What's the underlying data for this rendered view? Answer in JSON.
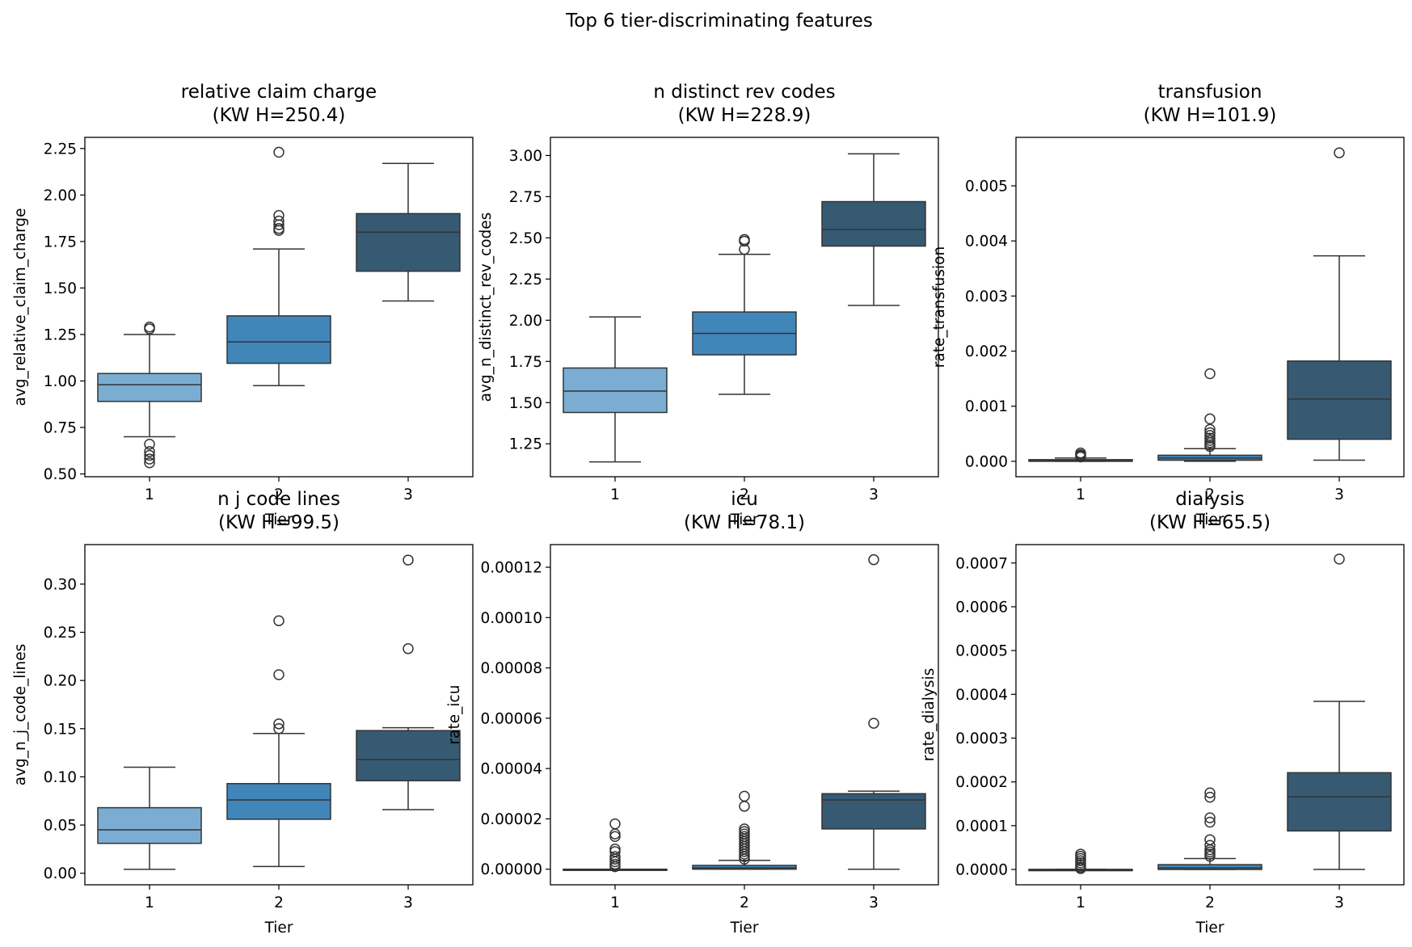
{
  "figure": {
    "title": "Top 6 tier-discriminating features"
  },
  "chart_data": [
    {
      "type": "box",
      "title": "relative claim charge",
      "subtitle": "(KW H=250.4)",
      "xlabel": "Tier",
      "ylabel": "avg_relative_claim_charge",
      "categories": [
        "1",
        "2",
        "3"
      ],
      "ylim": [
        0.485,
        2.31
      ],
      "yticks": [
        0.5,
        0.75,
        1.0,
        1.25,
        1.5,
        1.75,
        2.0,
        2.25
      ],
      "ytick_labels": [
        "0.50",
        "0.75",
        "1.00",
        "1.25",
        "1.50",
        "1.75",
        "2.00",
        "2.25"
      ],
      "boxes": [
        {
          "whislo": 0.7,
          "q1": 0.89,
          "med": 0.98,
          "q3": 1.04,
          "whishi": 1.25,
          "fliers": [
            1.29,
            1.28,
            0.66,
            0.62,
            0.6,
            0.58,
            0.56
          ]
        },
        {
          "whislo": 0.975,
          "q1": 1.095,
          "med": 1.21,
          "q3": 1.35,
          "whishi": 1.71,
          "fliers": [
            2.23,
            1.89,
            1.86,
            1.84,
            1.82,
            1.81
          ]
        },
        {
          "whislo": 1.43,
          "q1": 1.59,
          "med": 1.8,
          "q3": 1.9,
          "whishi": 2.17,
          "fliers": []
        }
      ]
    },
    {
      "type": "box",
      "title": "n distinct rev codes",
      "subtitle": "(KW H=228.9)",
      "xlabel": "Tier",
      "ylabel": "avg_n_distinct_rev_codes",
      "categories": [
        "1",
        "2",
        "3"
      ],
      "ylim": [
        1.05,
        3.11
      ],
      "yticks": [
        1.25,
        1.5,
        1.75,
        2.0,
        2.25,
        2.5,
        2.75,
        3.0
      ],
      "ytick_labels": [
        "1.25",
        "1.50",
        "1.75",
        "2.00",
        "2.25",
        "2.50",
        "2.75",
        "3.00"
      ],
      "boxes": [
        {
          "whislo": 1.14,
          "q1": 1.44,
          "med": 1.57,
          "q3": 1.71,
          "whishi": 2.02,
          "fliers": []
        },
        {
          "whislo": 1.55,
          "q1": 1.79,
          "med": 1.92,
          "q3": 2.05,
          "whishi": 2.4,
          "fliers": [
            2.49,
            2.48,
            2.43
          ]
        },
        {
          "whislo": 2.09,
          "q1": 2.45,
          "med": 2.55,
          "q3": 2.72,
          "whishi": 3.01,
          "fliers": []
        }
      ]
    },
    {
      "type": "box",
      "title": "transfusion",
      "subtitle": "(KW H=101.9)",
      "xlabel": "Tier",
      "ylabel": "rate_transfusion",
      "categories": [
        "1",
        "2",
        "3"
      ],
      "ylim": [
        -0.00028,
        0.00588
      ],
      "yticks": [
        0,
        0.001,
        0.002,
        0.003,
        0.004,
        0.005
      ],
      "ytick_labels": [
        "0.000",
        "0.001",
        "0.002",
        "0.003",
        "0.004",
        "0.005"
      ],
      "boxes": [
        {
          "whislo": 0.0,
          "q1": 0.0,
          "med": 1e-05,
          "q3": 3e-05,
          "whishi": 6e-05,
          "fliers": [
            0.00015,
            0.00012,
            0.0001,
            8e-05
          ]
        },
        {
          "whislo": 0.0,
          "q1": 2e-05,
          "med": 6e-05,
          "q3": 0.00011,
          "whishi": 0.00023,
          "fliers": [
            0.00159,
            0.00077,
            0.00058,
            0.00052,
            0.00047,
            0.00042,
            0.00038,
            0.00034,
            0.0003,
            0.00027
          ]
        },
        {
          "whislo": 2e-05,
          "q1": 0.0004,
          "med": 0.00113,
          "q3": 0.00182,
          "whishi": 0.00373,
          "fliers": [
            0.0056
          ]
        }
      ]
    },
    {
      "type": "box",
      "title": "n j code lines",
      "subtitle": "(KW H=99.5)",
      "xlabel": "Tier",
      "ylabel": "avg_n_j_code_lines",
      "categories": [
        "1",
        "2",
        "3"
      ],
      "ylim": [
        -0.012,
        0.341
      ],
      "yticks": [
        0,
        0.05,
        0.1,
        0.15,
        0.2,
        0.25,
        0.3
      ],
      "ytick_labels": [
        "0.00",
        "0.05",
        "0.10",
        "0.15",
        "0.20",
        "0.25",
        "0.30"
      ],
      "boxes": [
        {
          "whislo": 0.004,
          "q1": 0.031,
          "med": 0.045,
          "q3": 0.068,
          "whishi": 0.11,
          "fliers": []
        },
        {
          "whislo": 0.007,
          "q1": 0.056,
          "med": 0.076,
          "q3": 0.093,
          "whishi": 0.145,
          "fliers": [
            0.262,
            0.206,
            0.155,
            0.15
          ]
        },
        {
          "whislo": 0.066,
          "q1": 0.096,
          "med": 0.118,
          "q3": 0.148,
          "whishi": 0.151,
          "fliers": [
            0.325,
            0.233
          ]
        }
      ]
    },
    {
      "type": "box",
      "title": "icu",
      "subtitle": "(KW H=78.1)",
      "xlabel": "Tier",
      "ylabel": "rate_icu",
      "categories": [
        "1",
        "2",
        "3"
      ],
      "ylim": [
        -6.2e-06,
        0.000129
      ],
      "yticks": [
        0,
        2e-05,
        4e-05,
        6e-05,
        8e-05,
        0.0001,
        0.00012
      ],
      "ytick_labels": [
        "0.00000",
        "0.00002",
        "0.00004",
        "0.00006",
        "0.00008",
        "0.00010",
        "0.00012"
      ],
      "boxes": [
        {
          "whislo": 0.0,
          "q1": 0.0,
          "med": 0.0,
          "q3": 0.0,
          "whishi": 0.0,
          "fliers": [
            1.8e-05,
            1.4e-05,
            1.3e-05,
            8e-06,
            7e-06,
            5e-06,
            4e-06,
            3e-06,
            2e-06,
            1e-06
          ]
        },
        {
          "whislo": 0.0,
          "q1": 0.0,
          "med": 5e-07,
          "q3": 1.5e-06,
          "whishi": 3.5e-06,
          "fliers": [
            2.9e-05,
            2.5e-05,
            1.6e-05,
            1.5e-05,
            1.4e-05,
            1.3e-05,
            1.2e-05,
            1.1e-05,
            1e-05,
            9e-06,
            8e-06,
            7e-06,
            6e-06,
            5e-06,
            4e-06
          ]
        },
        {
          "whislo": 0.0,
          "q1": 1.6e-05,
          "med": 2.75e-05,
          "q3": 3e-05,
          "whishi": 3.1e-05,
          "fliers": [
            0.000123,
            5.8e-05
          ]
        }
      ]
    },
    {
      "type": "box",
      "title": "dialysis",
      "subtitle": "(KW H=65.5)",
      "xlabel": "Tier",
      "ylabel": "rate_dialysis",
      "categories": [
        "1",
        "2",
        "3"
      ],
      "ylim": [
        -3.5e-05,
        0.000742
      ],
      "yticks": [
        0,
        0.0001,
        0.0002,
        0.0003,
        0.0004,
        0.0005,
        0.0006,
        0.0007
      ],
      "ytick_labels": [
        "0.0000",
        "0.0001",
        "0.0002",
        "0.0003",
        "0.0004",
        "0.0005",
        "0.0006",
        "0.0007"
      ],
      "boxes": [
        {
          "whislo": 0.0,
          "q1": 0.0,
          "med": 0.0,
          "q3": 0.0,
          "whishi": 0.0,
          "fliers": [
            3.5e-05,
            3e-05,
            2.5e-05,
            2e-05,
            1.5e-05,
            1e-05,
            5e-06,
            2e-06
          ]
        },
        {
          "whislo": 0.0,
          "q1": 0.0,
          "med": 3.5e-06,
          "q3": 1.1e-05,
          "whishi": 2.5e-05,
          "fliers": [
            0.000175,
            0.000165,
            0.000118,
            0.000108,
            6.8e-05,
            5.5e-05,
            4.5e-05,
            4e-05,
            3.5e-05,
            3e-05
          ]
        },
        {
          "whislo": 0.0,
          "q1": 8.8e-05,
          "med": 0.000166,
          "q3": 0.000221,
          "whishi": 0.000384,
          "fliers": [
            0.000709
          ]
        }
      ]
    }
  ],
  "colors": {
    "tier1": "#7badd3",
    "tier2": "#4186b9",
    "tier3": "#375a73",
    "line": "#333333",
    "axis": "#000000"
  }
}
